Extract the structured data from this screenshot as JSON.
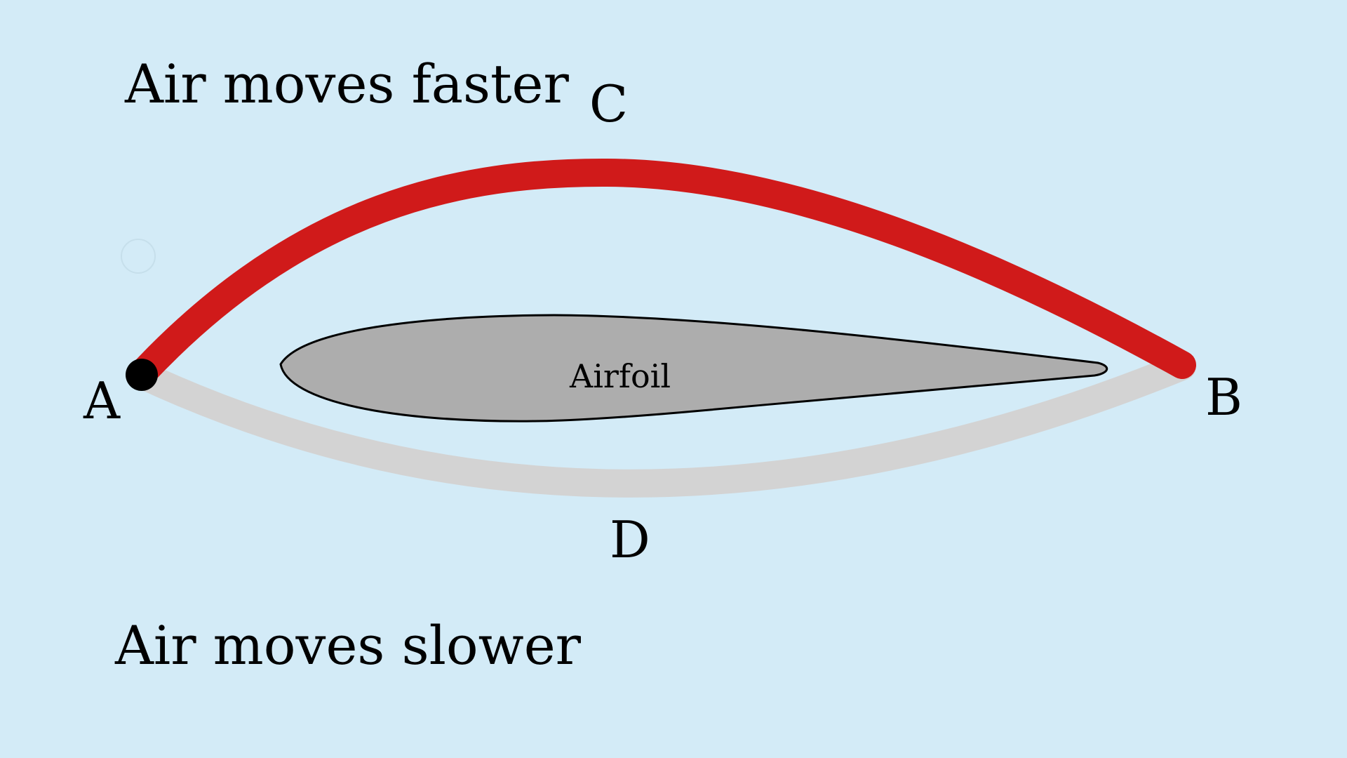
{
  "captions": {
    "top": "Air moves faster",
    "bottom": "Air moves slower"
  },
  "points": {
    "a": "A",
    "b": "B",
    "c": "C",
    "d": "D"
  },
  "airfoil": {
    "label": "Airfoil"
  },
  "colors": {
    "background": "#d3ebf7",
    "upper_path": "#d01a1a",
    "lower_path": "#d3d3d3",
    "airfoil_fill": "#adadad",
    "airfoil_outline": "#000000",
    "start_dot": "#000000"
  }
}
